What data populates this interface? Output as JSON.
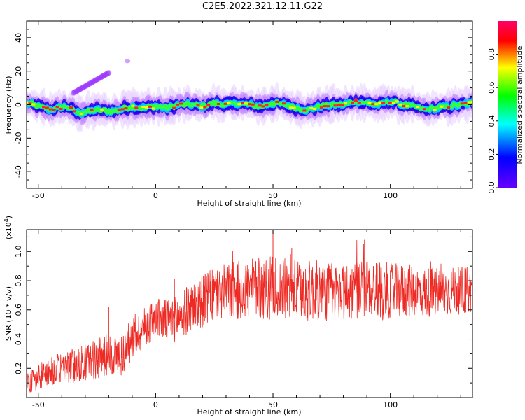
{
  "title": "C2E5.2022.321.12.11.G22",
  "chart_data": [
    {
      "type": "heatmap",
      "xlabel": "Height of straight line (km)",
      "ylabel": "Frequency (Hz)",
      "xlim": [
        -55,
        135
      ],
      "ylim": [
        -50,
        50
      ],
      "xticks": [
        -50,
        0,
        50,
        100
      ],
      "yticks": [
        -40,
        -20,
        0,
        20,
        40
      ],
      "colorbar": {
        "label": "Normalized spectral amplitude",
        "range": [
          0,
          1
        ],
        "ticks": [
          "0.0",
          "0.2",
          "0.4",
          "0.6",
          "0.8"
        ],
        "stops": [
          "#6600ff",
          "#0000ff",
          "#00ffff",
          "#00ff00",
          "#ffff00",
          "#ff0000",
          "#ff00ff"
        ]
      },
      "band_center_hz": [
        [
          -55,
          1
        ],
        [
          -45,
          -3
        ],
        [
          -38,
          -1
        ],
        [
          -33,
          -5
        ],
        [
          -25,
          -3
        ],
        [
          -18,
          -4
        ],
        [
          -10,
          -1
        ],
        [
          -5,
          -2
        ],
        [
          0,
          -1
        ],
        [
          5,
          -2
        ],
        [
          10,
          0
        ],
        [
          15,
          0
        ],
        [
          20,
          -1
        ],
        [
          25,
          1
        ],
        [
          30,
          0
        ],
        [
          35,
          1
        ],
        [
          40,
          0
        ],
        [
          45,
          -1
        ],
        [
          50,
          1
        ],
        [
          55,
          0
        ],
        [
          60,
          -2
        ],
        [
          65,
          -3
        ],
        [
          70,
          -1
        ],
        [
          75,
          0
        ],
        [
          80,
          0
        ],
        [
          85,
          2
        ],
        [
          90,
          1
        ],
        [
          95,
          0
        ],
        [
          100,
          2
        ],
        [
          105,
          0
        ],
        [
          110,
          -1
        ],
        [
          115,
          -3
        ],
        [
          120,
          -2
        ],
        [
          125,
          -1
        ],
        [
          130,
          0
        ],
        [
          135,
          1
        ]
      ],
      "side_feature": {
        "x": [
          -35,
          -20
        ],
        "y": [
          7,
          19
        ]
      },
      "spot": {
        "x": -12,
        "y": 26
      }
    },
    {
      "type": "line",
      "xlabel": "Height of straight line (km)",
      "ylabel": "SNR (10 * v/v)",
      "multiplier": "(x10",
      "multiplier_exp": "4",
      "multiplier_close": ")",
      "xlim": [
        -55,
        135
      ],
      "ylim": [
        0.0,
        1.15
      ],
      "xticks": [
        -50,
        0,
        50,
        100
      ],
      "yticks": [
        "0.2",
        "0.4",
        "0.6",
        "0.8",
        "1.0"
      ],
      "color": "#ee2a24",
      "trend": [
        [
          -55,
          0.1
        ],
        [
          -45,
          0.18
        ],
        [
          -35,
          0.22
        ],
        [
          -25,
          0.26
        ],
        [
          -20,
          0.3
        ],
        [
          -15,
          0.28
        ],
        [
          -10,
          0.4
        ],
        [
          -5,
          0.48
        ],
        [
          0,
          0.55
        ],
        [
          5,
          0.52
        ],
        [
          10,
          0.55
        ],
        [
          15,
          0.62
        ],
        [
          20,
          0.66
        ],
        [
          25,
          0.7
        ],
        [
          30,
          0.72
        ],
        [
          40,
          0.74
        ],
        [
          50,
          0.75
        ],
        [
          60,
          0.73
        ],
        [
          70,
          0.73
        ],
        [
          80,
          0.72
        ],
        [
          90,
          0.75
        ],
        [
          100,
          0.73
        ],
        [
          110,
          0.73
        ],
        [
          120,
          0.72
        ],
        [
          135,
          0.74
        ]
      ],
      "noise": [
        [
          -55,
          0.08
        ],
        [
          -20,
          0.15
        ],
        [
          0,
          0.14
        ],
        [
          30,
          0.2
        ],
        [
          50,
          0.22
        ],
        [
          90,
          0.2
        ],
        [
          135,
          0.16
        ]
      ],
      "peaks": [
        [
          50,
          1.18
        ],
        [
          58,
          1.02
        ],
        [
          89,
          1.08
        ],
        [
          94,
          0.92
        ],
        [
          -20,
          0.62
        ],
        [
          8,
          0.81
        ]
      ]
    }
  ]
}
